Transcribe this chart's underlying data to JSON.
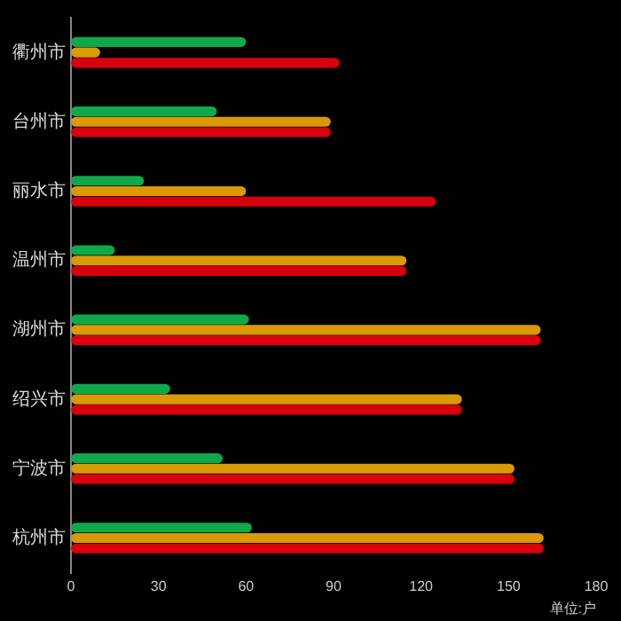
{
  "chart_data": {
    "type": "bar",
    "orientation": "horizontal",
    "xlabel": "单位:户",
    "categories": [
      "衢州市",
      "台州市",
      "丽水市",
      "温州市",
      "湖州市",
      "绍兴市",
      "宁波市",
      "杭州市"
    ],
    "series": [
      {
        "color": "#0fa84a",
        "values": [
          60,
          50,
          25,
          15,
          61,
          34,
          52,
          62
        ]
      },
      {
        "color": "#d99a06",
        "values": [
          10,
          89,
          60,
          115,
          161,
          134,
          152,
          162
        ]
      },
      {
        "color": "#d8000f",
        "values": [
          92,
          89,
          125,
          115,
          161,
          134,
          152,
          162
        ]
      }
    ],
    "xlim": [
      0,
      180
    ],
    "xticks": [
      0,
      30,
      60,
      90,
      120,
      150,
      180
    ],
    "grid": false,
    "legend": false
  }
}
